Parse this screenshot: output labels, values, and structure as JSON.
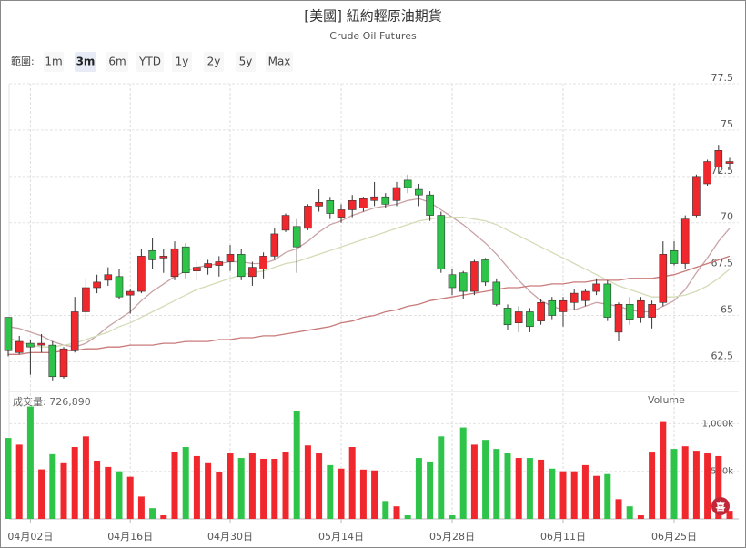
{
  "range_selector": {
    "label": "範圍:",
    "options": [
      "1m",
      "3m",
      "6m",
      "YTD",
      "1y",
      "2y",
      "5y",
      "Max"
    ],
    "selected": 1
  },
  "badge": "喜",
  "chart_data": {
    "type": "candlestick",
    "title": "[美國] 紐約輕原油期貨",
    "subtitle": "Crude Oil Futures",
    "categories": [
      null,
      null,
      "04月02日",
      null,
      null,
      null,
      null,
      null,
      null,
      null,
      null,
      "04月16日",
      null,
      null,
      null,
      null,
      null,
      null,
      null,
      null,
      "04月30日",
      null,
      null,
      null,
      null,
      null,
      null,
      null,
      null,
      null,
      "05月14日",
      null,
      null,
      null,
      null,
      null,
      null,
      null,
      null,
      null,
      "05月28日",
      null,
      null,
      null,
      null,
      null,
      null,
      null,
      null,
      null,
      "06月11日",
      null,
      null,
      null,
      null,
      null,
      null,
      null,
      null,
      null,
      "06月25日",
      null,
      null,
      null,
      null,
      null
    ],
    "open": [
      64.9,
      63.0,
      63.5,
      63.4,
      63.4,
      61.7,
      63.1,
      65.2,
      66.5,
      66.9,
      67.1,
      66.1,
      66.3,
      68.5,
      68.1,
      67.1,
      68.7,
      67.4,
      67.6,
      67.7,
      67.9,
      68.3,
      67.1,
      67.5,
      68.2,
      69.6,
      69.8,
      69.7,
      70.9,
      71.2,
      70.3,
      70.7,
      70.8,
      71.2,
      71.4,
      71.2,
      72.3,
      71.8,
      71.5,
      70.4,
      67.2,
      67.3,
      66.3,
      68.0,
      66.8,
      65.4,
      64.6,
      65.2,
      64.7,
      65.8,
      65.2,
      65.7,
      65.8,
      66.3,
      66.7,
      64.1,
      65.6,
      64.9,
      64.9,
      65.7,
      68.5,
      67.8,
      70.4,
      72.1,
      73.0,
      73.2
    ],
    "high": [
      64.9,
      63.9,
      63.7,
      64.0,
      63.6,
      63.3,
      66.0,
      67.0,
      67.2,
      67.6,
      67.5,
      66.4,
      68.6,
      69.2,
      68.6,
      69.0,
      68.9,
      67.9,
      68.0,
      68.2,
      68.8,
      68.6,
      67.9,
      68.4,
      69.7,
      70.5,
      70.2,
      71.0,
      71.8,
      71.4,
      71.0,
      71.5,
      71.4,
      72.2,
      71.6,
      72.2,
      72.6,
      72.1,
      71.7,
      70.6,
      67.5,
      67.4,
      68.0,
      68.1,
      67.0,
      65.6,
      65.5,
      65.4,
      65.9,
      66.0,
      66.0,
      66.4,
      66.4,
      67.0,
      66.9,
      65.7,
      66.0,
      66.0,
      65.8,
      69.0,
      69.0,
      70.4,
      72.6,
      73.4,
      74.2,
      73.5
    ],
    "low": [
      62.8,
      62.9,
      61.8,
      63.0,
      61.5,
      61.6,
      63.0,
      64.8,
      66.2,
      66.6,
      65.9,
      65.1,
      66.2,
      67.5,
      67.3,
      66.9,
      67.0,
      66.9,
      67.2,
      67.1,
      67.4,
      66.9,
      66.6,
      67.0,
      68.0,
      69.5,
      67.3,
      69.6,
      70.6,
      70.2,
      70.0,
      70.3,
      70.6,
      70.9,
      70.8,
      70.9,
      71.6,
      70.9,
      70.1,
      67.3,
      66.1,
      65.9,
      66.1,
      66.6,
      65.5,
      64.2,
      64.1,
      64.1,
      64.5,
      64.8,
      64.4,
      65.3,
      65.5,
      66.1,
      64.7,
      63.6,
      64.5,
      64.6,
      64.3,
      65.5,
      67.7,
      67.5,
      70.3,
      72.0,
      72.7,
      72.9
    ],
    "close": [
      63.1,
      63.6,
      63.3,
      63.5,
      61.7,
      63.2,
      65.2,
      66.5,
      66.8,
      67.2,
      66.0,
      66.3,
      68.2,
      68.0,
      68.2,
      68.6,
      67.3,
      67.6,
      67.8,
      67.9,
      68.3,
      67.1,
      67.6,
      68.2,
      69.4,
      70.4,
      68.7,
      70.9,
      71.1,
      70.5,
      70.7,
      71.2,
      71.3,
      71.4,
      71.0,
      71.9,
      71.9,
      71.5,
      70.4,
      67.5,
      66.5,
      66.3,
      67.9,
      66.8,
      65.6,
      64.5,
      65.2,
      64.4,
      65.7,
      65.0,
      65.8,
      66.2,
      66.3,
      66.7,
      64.9,
      65.6,
      64.8,
      65.8,
      65.6,
      68.3,
      67.8,
      70.2,
      72.5,
      73.3,
      73.9,
      73.3
    ],
    "up_color": "#f0272d",
    "down_color": "#2ec44a",
    "ylim": [
      61,
      77.5
    ],
    "yticks": [
      62.5,
      65,
      67.5,
      70,
      72.5,
      75,
      77.5
    ],
    "grid": true,
    "moving_averages": [
      {
        "color": "#c9a2a6",
        "values": [
          64.4,
          64.3,
          64.1,
          63.9,
          63.6,
          63.4,
          63.3,
          63.5,
          63.9,
          64.4,
          64.8,
          65.2,
          65.8,
          66.3,
          66.7,
          67.1,
          67.4,
          67.6,
          67.7,
          67.8,
          67.9,
          67.9,
          67.8,
          67.8,
          68.0,
          68.4,
          68.6,
          69.0,
          69.5,
          69.9,
          70.1,
          70.4,
          70.6,
          70.8,
          70.9,
          71.0,
          71.2,
          71.3,
          71.1,
          70.7,
          70.3,
          69.9,
          69.4,
          68.9,
          68.3,
          67.6,
          66.9,
          66.3,
          65.8,
          65.5,
          65.3,
          65.3,
          65.5,
          65.7,
          65.6,
          65.5,
          65.3,
          65.2,
          65.2,
          65.5,
          65.8,
          66.4,
          67.3,
          68.1,
          69.0,
          69.7
        ]
      },
      {
        "color": "#d3dcb6",
        "values": [
          63.8,
          63.6,
          63.4,
          63.3,
          63.3,
          63.4,
          63.5,
          63.7,
          63.9,
          64.1,
          64.4,
          64.6,
          64.9,
          65.2,
          65.5,
          65.8,
          66.1,
          66.4,
          66.6,
          66.8,
          67.0,
          67.2,
          67.3,
          67.4,
          67.6,
          67.8,
          67.9,
          68.1,
          68.3,
          68.5,
          68.7,
          68.9,
          69.1,
          69.3,
          69.5,
          69.7,
          69.9,
          70.1,
          70.2,
          70.3,
          70.3,
          70.3,
          70.2,
          70.1,
          69.9,
          69.6,
          69.3,
          69.0,
          68.7,
          68.4,
          68.1,
          67.8,
          67.5,
          67.2,
          66.9,
          66.6,
          66.4,
          66.2,
          66.0,
          66.0,
          66.0,
          66.1,
          66.3,
          66.6,
          67.0,
          67.5
        ]
      },
      {
        "color": "#c97a7a",
        "values": [
          62.9,
          62.9,
          63.0,
          63.0,
          63.0,
          63.1,
          63.1,
          63.2,
          63.2,
          63.3,
          63.3,
          63.4,
          63.4,
          63.4,
          63.5,
          63.5,
          63.6,
          63.6,
          63.6,
          63.7,
          63.7,
          63.8,
          63.8,
          63.9,
          63.9,
          64.0,
          64.1,
          64.2,
          64.3,
          64.4,
          64.6,
          64.7,
          64.9,
          65.0,
          65.2,
          65.3,
          65.5,
          65.6,
          65.8,
          65.9,
          66.0,
          66.1,
          66.2,
          66.3,
          66.4,
          66.5,
          66.5,
          66.6,
          66.6,
          66.7,
          66.7,
          66.8,
          66.8,
          66.9,
          66.9,
          66.9,
          67.0,
          67.0,
          67.0,
          67.1,
          67.2,
          67.4,
          67.6,
          67.8,
          68.0,
          68.2
        ]
      }
    ],
    "volume": {
      "label": "Volume",
      "summary": "成交量: 726,890",
      "values": [
        850000,
        780000,
        1180000,
        520000,
        680000,
        585000,
        755000,
        867000,
        612000,
        546000,
        500000,
        443000,
        235000,
        113000,
        38000,
        707000,
        755000,
        660000,
        585000,
        490000,
        688000,
        640000,
        688000,
        631000,
        631000,
        707000,
        1130000,
        772000,
        688000,
        565000,
        528000,
        755000,
        518000,
        509000,
        188000,
        132000,
        38000,
        640000,
        603000,
        867000,
        38000,
        960000,
        780000,
        830000,
        735000,
        688000,
        640000,
        640000,
        622000,
        528000,
        500000,
        500000,
        565000,
        452000,
        471000,
        207000,
        132000,
        38000,
        697000,
        1017000,
        735000,
        763000,
        716000,
        688000,
        660000,
        85000
      ],
      "ylim": [
        0,
        1300000
      ],
      "yticks": [
        {
          "value": 500000,
          "label": "500k"
        },
        {
          "value": 1000000,
          "label": "1,000k"
        }
      ]
    }
  }
}
